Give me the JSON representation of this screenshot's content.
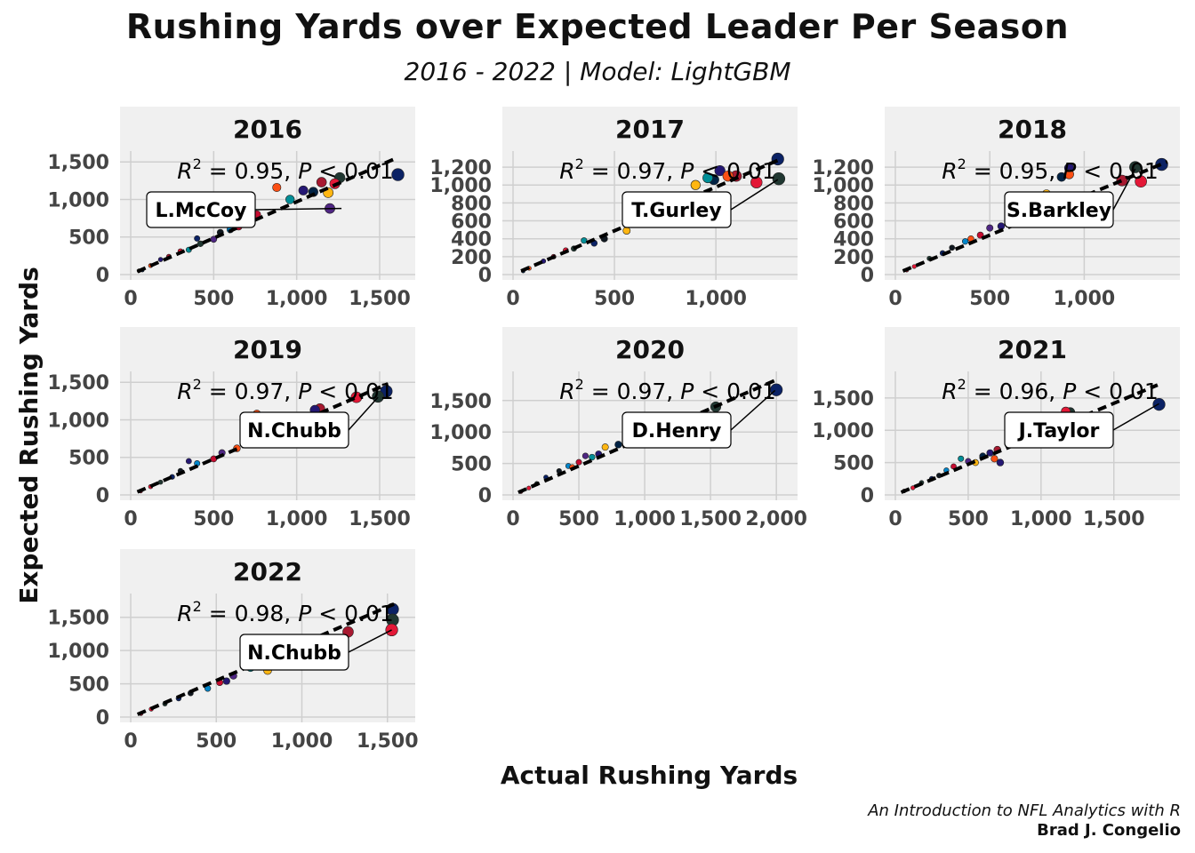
{
  "title": "Rushing Yards over Expected Leader Per Season",
  "subtitle": "2016 - 2022 | Model: LightGBM",
  "caption_line1": "An Introduction to NFL Analytics with R",
  "caption_line2": "Brad J. Congelio",
  "chart_data": {
    "type": "scatter",
    "xlabel": "Actual Rushing Yards",
    "ylabel": "Expected Rushing Yards",
    "facets": [
      {
        "label": "2016",
        "leader": "L.McCoy",
        "r2_text": "= 0.95,",
        "p_text": "< 0.01",
        "xlim": [
          0,
          1650
        ],
        "ylim": [
          0,
          1550
        ],
        "xticks": [
          0,
          500,
          1000,
          1500
        ],
        "yticks": [
          0,
          500,
          1000,
          1500
        ],
        "leader_point": [
          1270,
          880
        ],
        "fit_end": [
          1610,
          1560
        ],
        "points": [
          [
            1610,
            1330
          ],
          [
            1260,
            1290
          ],
          [
            1230,
            1210
          ],
          [
            1150,
            1230
          ],
          [
            1040,
            1120
          ],
          [
            880,
            1160
          ],
          [
            1100,
            1100
          ],
          [
            1190,
            1090
          ],
          [
            960,
            1000
          ],
          [
            1200,
            880
          ],
          [
            760,
            800
          ],
          [
            600,
            600
          ],
          [
            540,
            560
          ],
          [
            400,
            480
          ],
          [
            420,
            410
          ],
          [
            300,
            310
          ],
          [
            230,
            240
          ],
          [
            180,
            200
          ],
          [
            120,
            120
          ],
          [
            70,
            60
          ],
          [
            50,
            50
          ],
          [
            350,
            330
          ],
          [
            500,
            470
          ],
          [
            650,
            640
          ]
        ]
      },
      {
        "label": "2017",
        "leader": "T.Gurley",
        "r2_text": "= 0.97,",
        "p_text": "< 0.01",
        "xlim": [
          0,
          1350
        ],
        "ylim": [
          0,
          1300
        ],
        "xticks": [
          0,
          500,
          1000
        ],
        "yticks": [
          0,
          200,
          400,
          600,
          800,
          1000,
          1200
        ],
        "leader_point": [
          1305,
          1060
        ],
        "fit_end": [
          1320,
          1290
        ],
        "points": [
          [
            1305,
            1290
          ],
          [
            1310,
            1070
          ],
          [
            1200,
            1030
          ],
          [
            1100,
            1100
          ],
          [
            1020,
            1160
          ],
          [
            1060,
            1100
          ],
          [
            990,
            1060
          ],
          [
            900,
            1000
          ],
          [
            960,
            1080
          ],
          [
            800,
            800
          ],
          [
            700,
            720
          ],
          [
            600,
            620
          ],
          [
            450,
            400
          ],
          [
            400,
            350
          ],
          [
            300,
            290
          ],
          [
            260,
            270
          ],
          [
            200,
            200
          ],
          [
            150,
            150
          ],
          [
            80,
            70
          ],
          [
            50,
            40
          ],
          [
            560,
            490
          ],
          [
            350,
            380
          ]
        ]
      },
      {
        "label": "2018",
        "leader": "S.Barkley",
        "r2_text": "= 0.95,",
        "p_text": "< 0.01",
        "xlim": [
          0,
          1450
        ],
        "ylim": [
          0,
          1300
        ],
        "xticks": [
          0,
          500,
          1000
        ],
        "yticks": [
          0,
          200,
          400,
          600,
          800,
          1000,
          1200
        ],
        "leader_point": [
          1270,
          1180
        ],
        "fit_end": [
          1440,
          1260
        ],
        "points": [
          [
            1410,
            1230
          ],
          [
            1270,
            1200
          ],
          [
            1300,
            1040
          ],
          [
            1200,
            1050
          ],
          [
            920,
            1190
          ],
          [
            920,
            1120
          ],
          [
            880,
            1090
          ],
          [
            800,
            900
          ],
          [
            650,
            660
          ],
          [
            500,
            520
          ],
          [
            450,
            440
          ],
          [
            370,
            370
          ],
          [
            300,
            300
          ],
          [
            250,
            240
          ],
          [
            180,
            180
          ],
          [
            100,
            90
          ],
          [
            60,
            50
          ],
          [
            560,
            540
          ],
          [
            400,
            400
          ],
          [
            700,
            720
          ]
        ]
      },
      {
        "label": "2019",
        "leader": "N.Chubb",
        "r2_text": "= 0.97,",
        "p_text": "< 0.01",
        "xlim": [
          0,
          1650
        ],
        "ylim": [
          0,
          1550
        ],
        "xticks": [
          0,
          500,
          1000,
          1500
        ],
        "yticks": [
          0,
          500,
          1000,
          1500
        ],
        "leader_point": [
          1490,
          1300
        ],
        "fit_end": [
          1550,
          1480
        ],
        "points": [
          [
            1540,
            1380
          ],
          [
            1490,
            1310
          ],
          [
            1360,
            1300
          ],
          [
            1140,
            1150
          ],
          [
            1110,
            1130
          ],
          [
            760,
            1080
          ],
          [
            960,
            1000
          ],
          [
            850,
            900
          ],
          [
            1000,
            970
          ],
          [
            550,
            560
          ],
          [
            500,
            480
          ],
          [
            400,
            420
          ],
          [
            300,
            320
          ],
          [
            250,
            240
          ],
          [
            180,
            170
          ],
          [
            120,
            110
          ],
          [
            60,
            50
          ],
          [
            350,
            450
          ],
          [
            640,
            620
          ],
          [
            700,
            700
          ]
        ]
      },
      {
        "label": "2020",
        "leader": "D.Henry",
        "r2_text": "= 0.97,",
        "p_text": "< 0.01",
        "xlim": [
          0,
          2080
        ],
        "ylim": [
          0,
          1850
        ],
        "xticks": [
          0,
          500,
          1000,
          1500,
          2000
        ],
        "yticks": [
          0,
          500,
          1000,
          1500
        ],
        "leader_point": [
          1990,
          1660
        ],
        "fit_end": [
          1990,
          1820
        ],
        "points": [
          [
            2000,
            1670
          ],
          [
            1540,
            1400
          ],
          [
            1200,
            1200
          ],
          [
            1100,
            1100
          ],
          [
            1000,
            950
          ],
          [
            900,
            880
          ],
          [
            800,
            800
          ],
          [
            700,
            760
          ],
          [
            600,
            600
          ],
          [
            550,
            620
          ],
          [
            500,
            520
          ],
          [
            420,
            460
          ],
          [
            350,
            380
          ],
          [
            250,
            280
          ],
          [
            180,
            180
          ],
          [
            120,
            110
          ],
          [
            60,
            50
          ],
          [
            650,
            650
          ],
          [
            450,
            440
          ]
        ]
      },
      {
        "label": "2021",
        "leader": "J.Taylor",
        "r2_text": "= 0.96,",
        "p_text": "< 0.01",
        "xlim": [
          0,
          1880
        ],
        "ylim": [
          0,
          1800
        ],
        "xticks": [
          0,
          500,
          1000,
          1500
        ],
        "yticks": [
          0,
          500,
          1000,
          1500
        ],
        "leader_point": [
          1810,
          1410
        ],
        "fit_end": [
          1800,
          1700
        ],
        "points": [
          [
            1810,
            1400
          ],
          [
            1200,
            1280
          ],
          [
            1170,
            1290
          ],
          [
            700,
            700
          ],
          [
            650,
            650
          ],
          [
            680,
            560
          ],
          [
            600,
            600
          ],
          [
            550,
            500
          ],
          [
            450,
            560
          ],
          [
            500,
            520
          ],
          [
            400,
            440
          ],
          [
            350,
            380
          ],
          [
            300,
            300
          ],
          [
            250,
            250
          ],
          [
            180,
            190
          ],
          [
            120,
            110
          ],
          [
            60,
            60
          ],
          [
            720,
            500
          ]
        ]
      },
      {
        "label": "2022",
        "leader": "N.Chubb",
        "r2_text": "= 0.98,",
        "p_text": "< 0.01",
        "xlim": [
          0,
          1600
        ],
        "ylim": [
          0,
          1750
        ],
        "xticks": [
          0,
          500,
          1000,
          1500
        ],
        "yticks": [
          0,
          500,
          1000,
          1500
        ],
        "leader_point": [
          1525,
          1310
        ],
        "fit_end": [
          1540,
          1700
        ],
        "points": [
          [
            1530,
            1620
          ],
          [
            1530,
            1460
          ],
          [
            1525,
            1310
          ],
          [
            1270,
            1280
          ],
          [
            1100,
            1130
          ],
          [
            1040,
            1120
          ],
          [
            1000,
            1000
          ],
          [
            800,
            700
          ],
          [
            700,
            740
          ],
          [
            600,
            620
          ],
          [
            520,
            520
          ],
          [
            450,
            430
          ],
          [
            350,
            360
          ],
          [
            280,
            280
          ],
          [
            200,
            200
          ],
          [
            120,
            120
          ],
          [
            60,
            50
          ],
          [
            560,
            540
          ]
        ]
      }
    ],
    "palette": [
      "#0b2265",
      "#203731",
      "#e31837",
      "#a71930",
      "#241773",
      "#fb4f14",
      "#002244",
      "#ffb612",
      "#008e97",
      "#4f2683",
      "#c60c30",
      "#0085ca",
      "#101820"
    ]
  }
}
